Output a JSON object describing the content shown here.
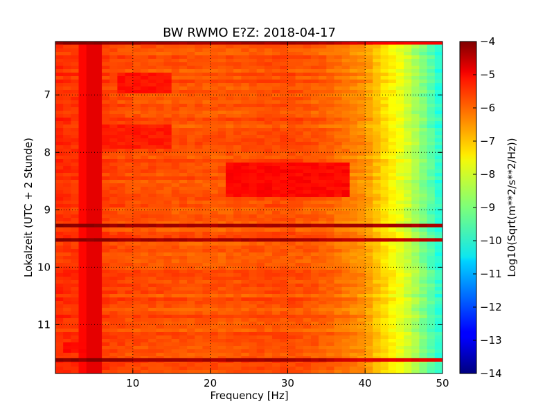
{
  "chart_data": {
    "type": "heatmap",
    "title": "BW RWMO E?Z: 2018-04-17",
    "xlabel": "Frequency [Hz]",
    "ylabel": "Lokalzeit (UTC + 2 Stunde)",
    "xlim": [
      0,
      50
    ],
    "ylim": [
      11.85,
      6.07
    ],
    "y_inverted": true,
    "x_ticks": [
      10,
      20,
      30,
      40,
      50
    ],
    "y_ticks": [
      7,
      8,
      9,
      10,
      11
    ],
    "grid": true,
    "colormap": "jet",
    "colorbar": {
      "label": "Log10(Sqrt(m**2/s**2/Hz))",
      "range": [
        -14,
        -4
      ],
      "ticks": [
        -4,
        -5,
        -6,
        -7,
        -8,
        -9,
        -10,
        -11,
        -12,
        -13,
        -14
      ]
    },
    "spectral_profile": {
      "frequency_hz": [
        0,
        5,
        10,
        20,
        30,
        35,
        40,
        42,
        44,
        46,
        48,
        50
      ],
      "level": [
        -5.7,
        -5.8,
        -6.0,
        -6.1,
        -6.0,
        -6.2,
        -6.7,
        -7.3,
        -7.8,
        -8.4,
        -9.2,
        -10.0
      ]
    },
    "bands": [
      {
        "time": 9.28,
        "level": -4.4,
        "fmin": 0,
        "fmax": 50
      },
      {
        "time": 9.53,
        "level": -4.6,
        "fmin": 0,
        "fmax": 50
      },
      {
        "time": 11.62,
        "level": -5.0,
        "fmin": 0,
        "fmax": 50
      },
      {
        "time": 6.1,
        "level": -5.2,
        "fmin": 0,
        "fmax": 50
      }
    ],
    "regions": [
      {
        "tmin": 8.2,
        "tmax": 8.75,
        "fmin": 22,
        "fmax": 38,
        "level": -5.3
      },
      {
        "tmin": 6.6,
        "tmax": 6.95,
        "fmin": 8,
        "fmax": 15,
        "level": -5.4
      },
      {
        "tmin": 7.5,
        "tmax": 7.95,
        "fmin": 3,
        "fmax": 15,
        "level": -5.5
      },
      {
        "tmin": 11.3,
        "tmax": 11.5,
        "fmin": 1,
        "fmax": 6,
        "level": -5.3
      }
    ],
    "vertical_lines": [
      {
        "frequency": 3.6,
        "level": -5.3
      },
      {
        "frequency": 5.0,
        "level": -5.0
      }
    ]
  }
}
